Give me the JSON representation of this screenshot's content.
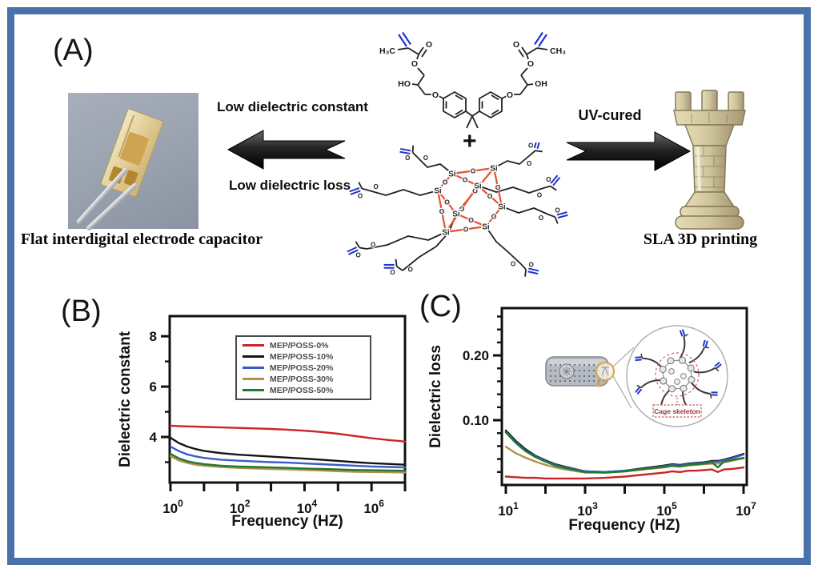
{
  "figure": {
    "border_color": "#4a72aa",
    "panel_a": {
      "label": "(A)",
      "capacitor_caption": "Flat interdigital electrode capacitor",
      "left_arrow_top_text": "Low dielectric constant",
      "left_arrow_bottom_text": "Low dielectric loss",
      "right_arrow_text": "UV-cured",
      "rook_caption": "SLA 3D printing",
      "plus": "+",
      "molecule_labels": {
        "h3c": "H₃C",
        "ch3": "CH₃",
        "ho": "HO",
        "oh": "OH",
        "o": "O",
        "si": "Si"
      }
    },
    "panel_b": {
      "label": "(B)"
    },
    "panel_c": {
      "label": "(C)",
      "inset_caption": "Cage skeleton"
    }
  },
  "chart_data": [
    {
      "id": "dielectric-constant",
      "type": "line",
      "title": "",
      "xlabel": "Frequency (HZ)",
      "ylabel": "Dielectric constant",
      "x_scale": "log",
      "ylim": [
        2.19,
        8.8
      ],
      "y_major_ticks": [
        {
          "value": 4,
          "label": "4"
        },
        {
          "value": 6,
          "label": "6"
        },
        {
          "value": 8,
          "label": "8"
        }
      ],
      "y_minor_ticks": [
        3,
        5,
        7
      ],
      "x_ticks_log10": [
        0,
        1,
        2,
        3,
        4,
        5,
        6,
        7
      ],
      "x_labeled_ticks": [
        {
          "log10": 0,
          "mantissa": "10",
          "exp": "0"
        },
        {
          "log10": 2,
          "mantissa": "10",
          "exp": "2"
        },
        {
          "log10": 4,
          "mantissa": "10",
          "exp": "4"
        },
        {
          "log10": 6,
          "mantissa": "10",
          "exp": "6"
        }
      ],
      "grid": false,
      "legend_position": "top-center",
      "x_log10": [
        0,
        0.25,
        0.5,
        0.75,
        1,
        1.5,
        2,
        2.5,
        3,
        3.5,
        4,
        4.5,
        5,
        5.5,
        6,
        6.5,
        7
      ],
      "series": [
        {
          "name": "MEP/POSS-0%",
          "color": "#cd2327",
          "values": [
            4.45,
            4.43,
            4.42,
            4.41,
            4.4,
            4.38,
            4.36,
            4.34,
            4.32,
            4.29,
            4.25,
            4.2,
            4.13,
            4.04,
            3.95,
            3.88,
            3.82
          ]
        },
        {
          "name": "MEP/POSS-10%",
          "color": "#141414",
          "values": [
            3.97,
            3.76,
            3.62,
            3.52,
            3.45,
            3.36,
            3.3,
            3.26,
            3.22,
            3.18,
            3.14,
            3.1,
            3.05,
            3.0,
            2.96,
            2.93,
            2.9
          ]
        },
        {
          "name": "MEP/POSS-20%",
          "color": "#3c5bc8",
          "values": [
            3.62,
            3.44,
            3.31,
            3.23,
            3.17,
            3.1,
            3.06,
            3.03,
            3.0,
            2.98,
            2.95,
            2.92,
            2.89,
            2.86,
            2.83,
            2.81,
            2.79
          ]
        },
        {
          "name": "MEP/POSS-30%",
          "color": "#b2914c",
          "values": [
            3.24,
            3.07,
            2.97,
            2.9,
            2.86,
            2.81,
            2.77,
            2.75,
            2.73,
            2.71,
            2.69,
            2.67,
            2.64,
            2.62,
            2.61,
            2.6,
            2.59
          ]
        },
        {
          "name": "MEP/POSS-50%",
          "color": "#1e7a32",
          "values": [
            3.33,
            3.15,
            3.04,
            2.97,
            2.92,
            2.86,
            2.83,
            2.81,
            2.79,
            2.77,
            2.75,
            2.73,
            2.71,
            2.69,
            2.68,
            2.67,
            2.66
          ]
        }
      ]
    },
    {
      "id": "dielectric-loss",
      "type": "line",
      "title": "",
      "xlabel": "Frequency (HZ)",
      "ylabel": "Dielectric loss",
      "x_scale": "log",
      "ylim": [
        0,
        0.273
      ],
      "y_major_ticks": [
        {
          "value": 0.1,
          "label": "0.10"
        },
        {
          "value": 0.2,
          "label": "0.20"
        }
      ],
      "y_minor_ticks": [
        0.02,
        0.04,
        0.06,
        0.08,
        0.12,
        0.14,
        0.16,
        0.18,
        0.22,
        0.24,
        0.26
      ],
      "x_ticks_log10": [
        1,
        2,
        3,
        4,
        5,
        6,
        7
      ],
      "x_labeled_ticks": [
        {
          "log10": 1,
          "mantissa": "10",
          "exp": "1"
        },
        {
          "log10": 3,
          "mantissa": "10",
          "exp": "3"
        },
        {
          "log10": 5,
          "mantissa": "10",
          "exp": "5"
        },
        {
          "log10": 7,
          "mantissa": "10",
          "exp": "7"
        }
      ],
      "grid": false,
      "legend_position": "none",
      "x_log10": [
        1,
        1.25,
        1.5,
        1.75,
        2,
        2.25,
        2.5,
        3,
        3.5,
        4,
        4.5,
        5,
        5.2,
        5.4,
        5.6,
        5.8,
        6,
        6.2,
        6.35,
        6.5,
        6.75,
        7
      ],
      "series": [
        {
          "name": "MEP/POSS-0%",
          "color": "#cd2327",
          "values": [
            0.013,
            0.012,
            0.011,
            0.011,
            0.01,
            0.01,
            0.01,
            0.01,
            0.011,
            0.013,
            0.016,
            0.019,
            0.021,
            0.02,
            0.022,
            0.022,
            0.023,
            0.024,
            0.02,
            0.024,
            0.025,
            0.027
          ]
        },
        {
          "name": "MEP/POSS-10%",
          "color": "#141414",
          "values": [
            0.084,
            0.068,
            0.055,
            0.045,
            0.038,
            0.032,
            0.028,
            0.021,
            0.02,
            0.022,
            0.026,
            0.03,
            0.032,
            0.031,
            0.033,
            0.034,
            0.035,
            0.037,
            0.037,
            0.039,
            0.043,
            0.048
          ]
        },
        {
          "name": "MEP/POSS-20%",
          "color": "#3c5bc8",
          "values": [
            0.082,
            0.066,
            0.053,
            0.044,
            0.037,
            0.031,
            0.027,
            0.021,
            0.02,
            0.022,
            0.025,
            0.029,
            0.031,
            0.03,
            0.032,
            0.033,
            0.034,
            0.036,
            0.036,
            0.038,
            0.042,
            0.047
          ]
        },
        {
          "name": "MEP/POSS-30%",
          "color": "#b2914c",
          "values": [
            0.059,
            0.049,
            0.042,
            0.036,
            0.031,
            0.027,
            0.024,
            0.019,
            0.019,
            0.021,
            0.024,
            0.027,
            0.029,
            0.028,
            0.03,
            0.031,
            0.032,
            0.033,
            0.033,
            0.035,
            0.038,
            0.041
          ]
        },
        {
          "name": "MEP/POSS-50%",
          "color": "#1e7a32",
          "values": [
            0.081,
            0.065,
            0.052,
            0.043,
            0.036,
            0.03,
            0.026,
            0.02,
            0.019,
            0.021,
            0.025,
            0.028,
            0.03,
            0.029,
            0.031,
            0.032,
            0.033,
            0.035,
            0.027,
            0.036,
            0.039,
            0.042
          ]
        }
      ]
    }
  ]
}
